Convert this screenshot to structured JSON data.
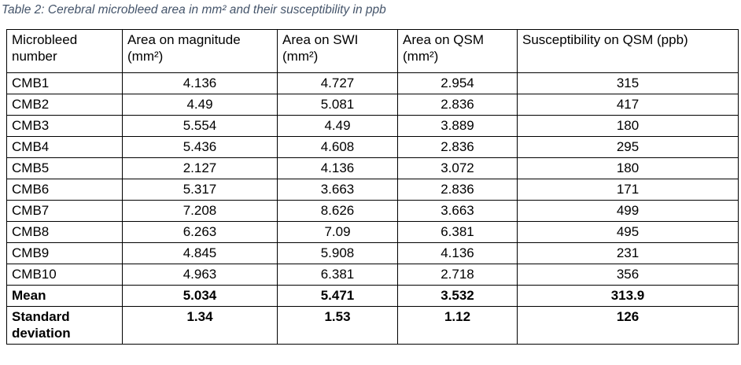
{
  "caption": {
    "text": "Table 2: Cerebral microbleed area in mm² and their susceptibility in ppb",
    "color": "#44546A"
  },
  "table": {
    "border_color": "#000000",
    "headers": [
      "Microbleed\nnumber",
      "Area on magnitude\n(mm²)",
      "Area on SWI\n(mm²)",
      "Area on QSM\n(mm²)",
      "Susceptibility on QSM (ppb)"
    ],
    "rows": [
      {
        "bold": false,
        "cells": [
          "CMB1",
          "4.136",
          "4.727",
          "2.954",
          "315"
        ]
      },
      {
        "bold": false,
        "cells": [
          "CMB2",
          "4.49",
          "5.081",
          "2.836",
          "417"
        ]
      },
      {
        "bold": false,
        "cells": [
          "CMB3",
          "5.554",
          "4.49",
          "3.889",
          "180"
        ]
      },
      {
        "bold": false,
        "cells": [
          "CMB4",
          "5.436",
          "4.608",
          "2.836",
          "295"
        ]
      },
      {
        "bold": false,
        "cells": [
          "CMB5",
          "2.127",
          "4.136",
          "3.072",
          "180"
        ]
      },
      {
        "bold": false,
        "cells": [
          "CMB6",
          "5.317",
          "3.663",
          "2.836",
          "171"
        ]
      },
      {
        "bold": false,
        "cells": [
          "CMB7",
          "7.208",
          "8.626",
          "3.663",
          "499"
        ]
      },
      {
        "bold": false,
        "cells": [
          "CMB8",
          "6.263",
          "7.09",
          "6.381",
          "495"
        ]
      },
      {
        "bold": false,
        "cells": [
          "CMB9",
          "4.845",
          "5.908",
          "4.136",
          "231"
        ]
      },
      {
        "bold": false,
        "cells": [
          "CMB10",
          "4.963",
          "6.381",
          "2.718",
          "356"
        ]
      },
      {
        "bold": true,
        "cells": [
          "Mean",
          "5.034",
          "5.471",
          "3.532",
          "313.9"
        ]
      },
      {
        "bold": true,
        "cells": [
          "Standard\ndeviation",
          "1.34",
          "1.53",
          "1.12",
          "126"
        ]
      }
    ]
  },
  "chart_data": {
    "type": "table",
    "title": "Table 2: Cerebral microbleed area in mm² and their susceptibility in ppb",
    "columns": [
      "Microbleed number",
      "Area on magnitude (mm²)",
      "Area on SWI (mm²)",
      "Area on QSM (mm²)",
      "Susceptibility on QSM (ppb)"
    ],
    "categories": [
      "CMB1",
      "CMB2",
      "CMB3",
      "CMB4",
      "CMB5",
      "CMB6",
      "CMB7",
      "CMB8",
      "CMB9",
      "CMB10",
      "Mean",
      "Standard deviation"
    ],
    "series": [
      {
        "name": "Area on magnitude (mm²)",
        "values": [
          4.136,
          4.49,
          5.554,
          5.436,
          2.127,
          5.317,
          7.208,
          6.263,
          4.845,
          4.963,
          5.034,
          1.34
        ]
      },
      {
        "name": "Area on SWI (mm²)",
        "values": [
          4.727,
          5.081,
          4.49,
          4.608,
          4.136,
          3.663,
          8.626,
          7.09,
          5.908,
          6.381,
          5.471,
          1.53
        ]
      },
      {
        "name": "Area on QSM (mm²)",
        "values": [
          2.954,
          2.836,
          3.889,
          2.836,
          3.072,
          2.836,
          3.663,
          6.381,
          4.136,
          2.718,
          3.532,
          1.12
        ]
      },
      {
        "name": "Susceptibility on QSM (ppb)",
        "values": [
          315,
          417,
          180,
          295,
          180,
          171,
          499,
          495,
          231,
          356,
          313.9,
          126
        ]
      }
    ]
  }
}
